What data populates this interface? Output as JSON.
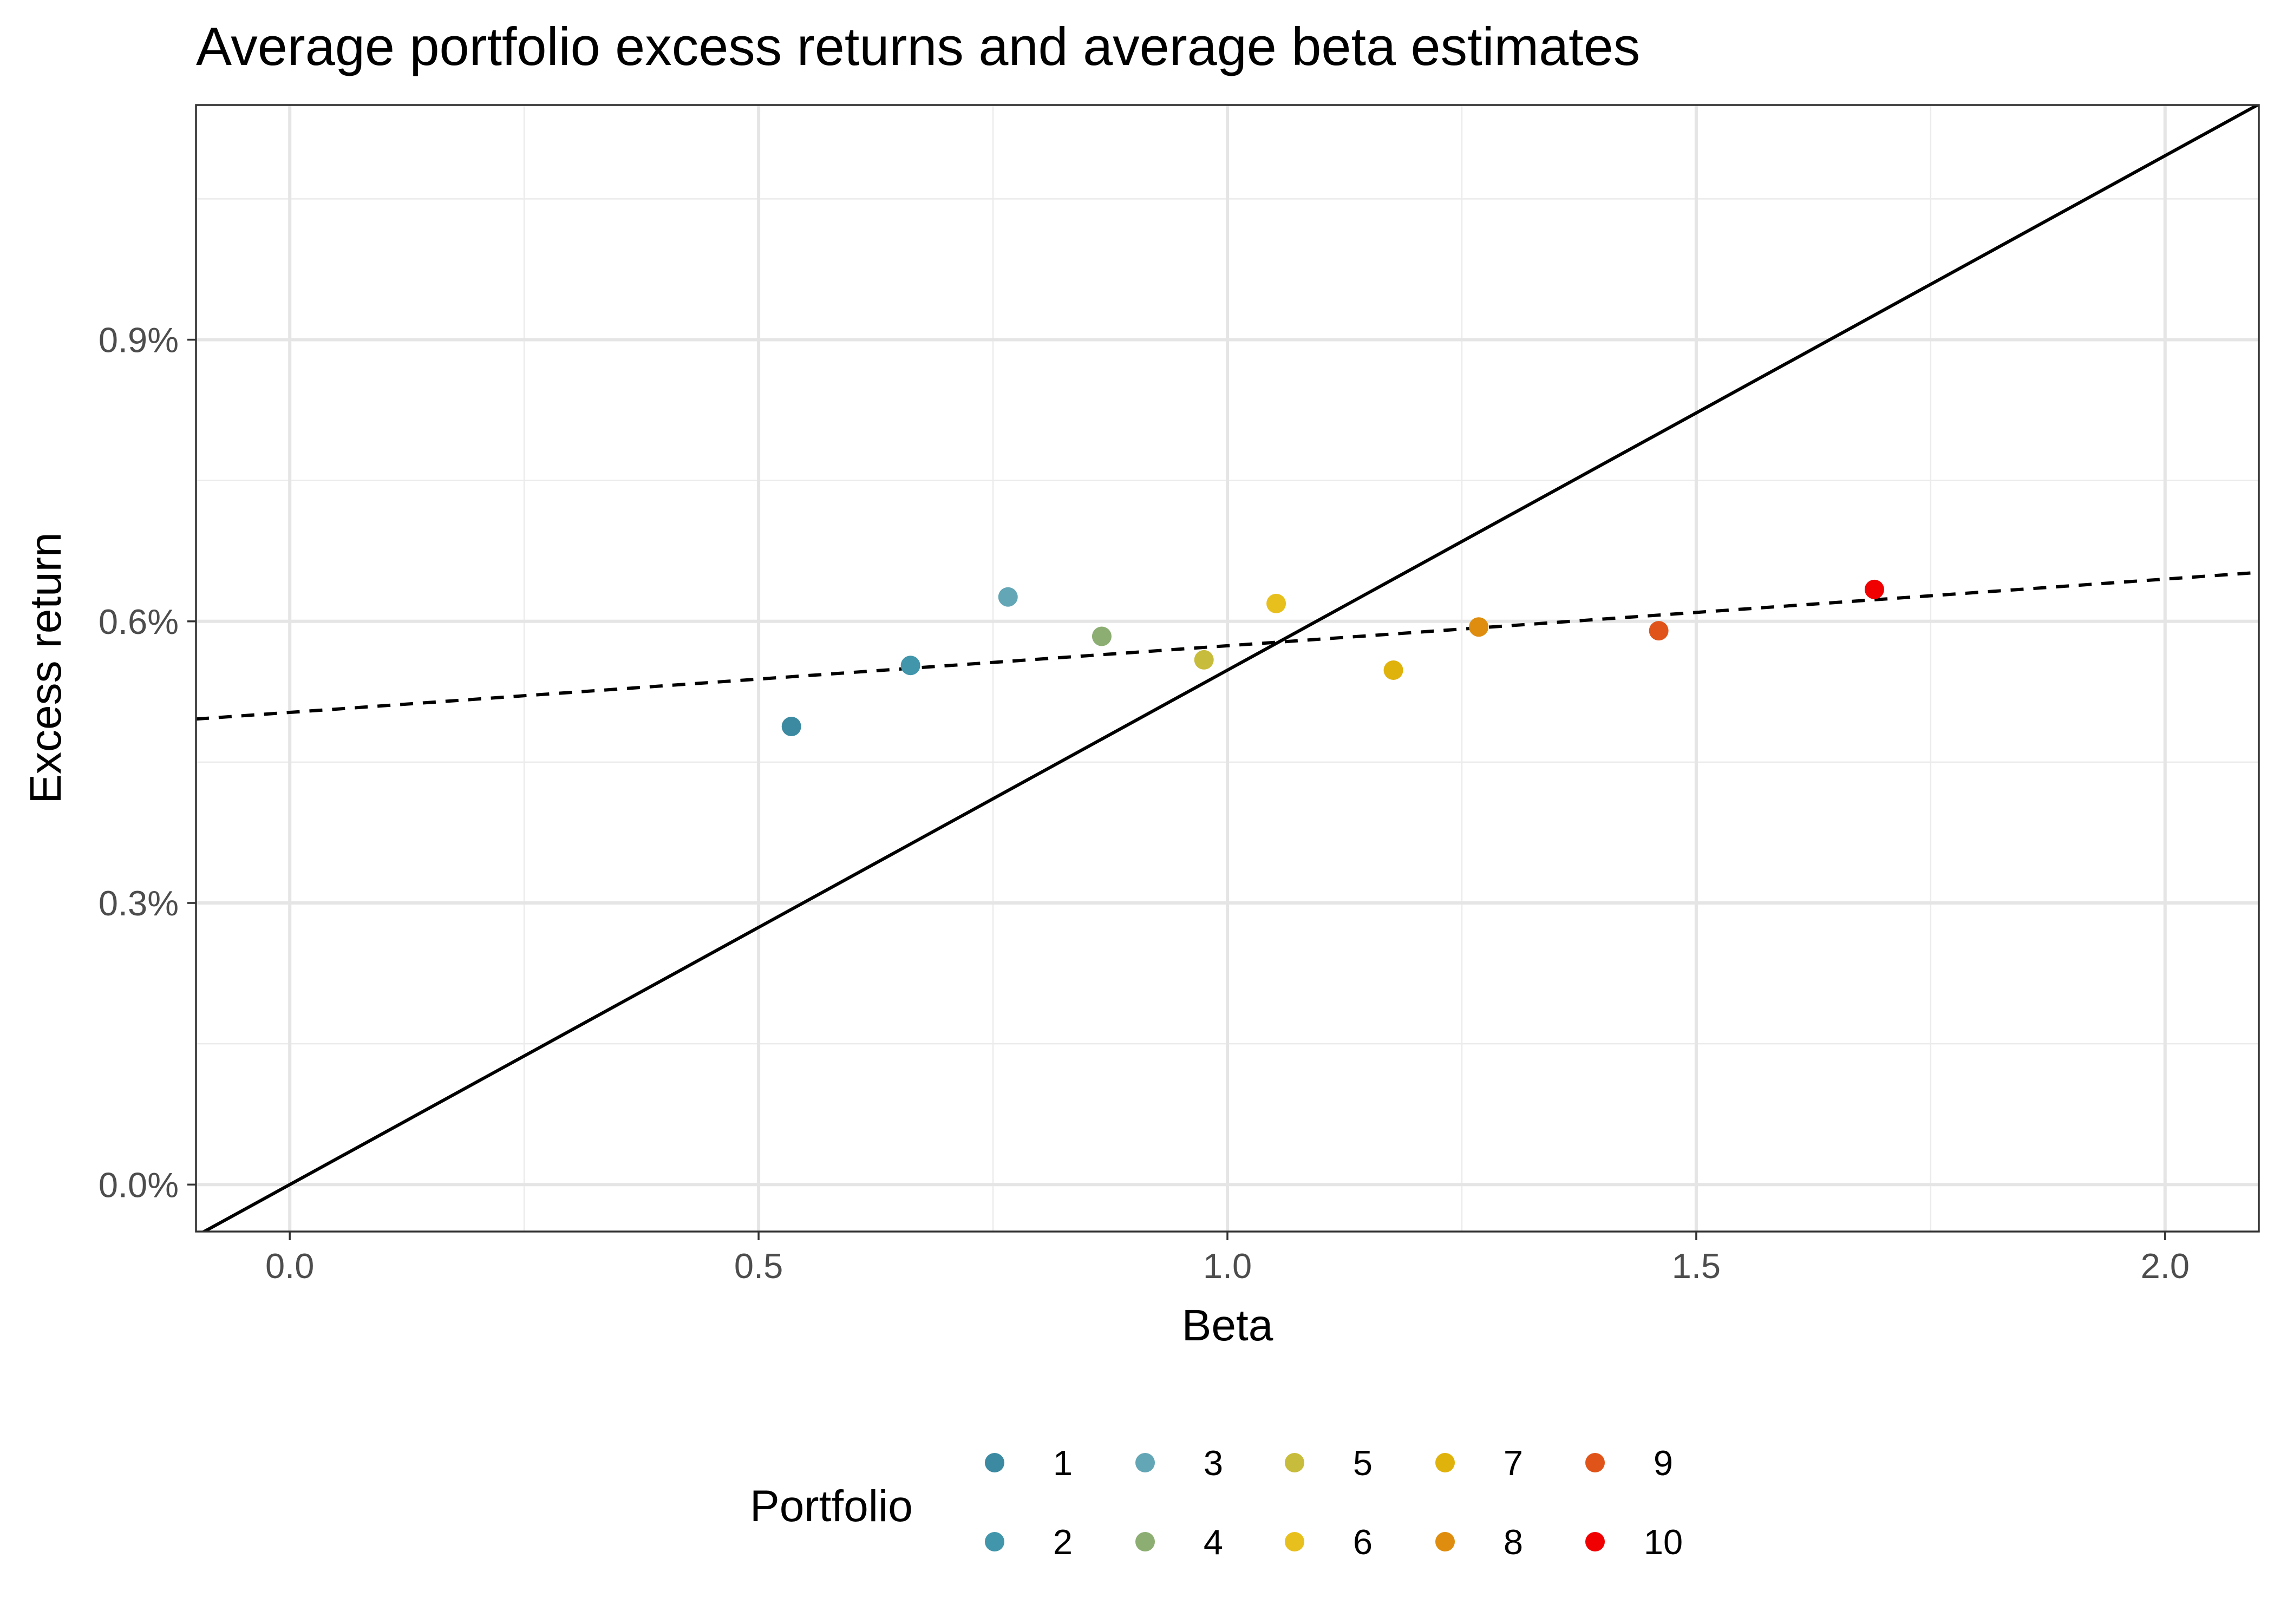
{
  "chart_data": {
    "type": "scatter",
    "title": "Average portfolio excess returns and average beta estimates",
    "xlabel": "Beta",
    "ylabel": "Excess return",
    "xlim": [
      -0.1,
      2.1
    ],
    "ylim": [
      -0.0005,
      0.0115
    ],
    "x_ticks": [
      0.0,
      0.5,
      1.0,
      1.5,
      2.0
    ],
    "x_tick_labels": [
      "0.0",
      "0.5",
      "1.0",
      "1.5",
      "2.0"
    ],
    "y_ticks": [
      0.0,
      0.003,
      0.006,
      0.009
    ],
    "y_tick_labels": [
      "0.0%",
      "0.3%",
      "0.6%",
      "0.9%"
    ],
    "grid": true,
    "legend": {
      "title": "Portfolio",
      "position": "bottom"
    },
    "series": [
      {
        "name": "1",
        "color": "#3b8aa1",
        "x": [
          0.535
        ],
        "y": [
          0.00488
        ]
      },
      {
        "name": "2",
        "color": "#4196ab",
        "x": [
          0.662
        ],
        "y": [
          0.00553
        ]
      },
      {
        "name": "3",
        "color": "#63a6b6",
        "x": [
          0.766
        ],
        "y": [
          0.00626
        ]
      },
      {
        "name": "4",
        "color": "#8cae72",
        "x": [
          0.866
        ],
        "y": [
          0.00584
        ]
      },
      {
        "name": "5",
        "color": "#c8bc3c",
        "x": [
          0.975
        ],
        "y": [
          0.00559
        ]
      },
      {
        "name": "6",
        "color": "#e8c01e",
        "x": [
          1.052
        ],
        "y": [
          0.00619
        ]
      },
      {
        "name": "7",
        "color": "#e0b20c",
        "x": [
          1.177
        ],
        "y": [
          0.00548
        ]
      },
      {
        "name": "8",
        "color": "#df8d0f",
        "x": [
          1.268
        ],
        "y": [
          0.00594
        ]
      },
      {
        "name": "9",
        "color": "#e0541a",
        "x": [
          1.46
        ],
        "y": [
          0.0059
        ]
      },
      {
        "name": "10",
        "color": "#f00000",
        "x": [
          1.69
        ],
        "y": [
          0.00634
        ]
      }
    ],
    "lines": [
      {
        "style": "solid",
        "intercept": 0.0,
        "slope": 0.00548
      },
      {
        "style": "dashed",
        "intercept": 0.00503,
        "slope": 0.00071
      }
    ]
  }
}
